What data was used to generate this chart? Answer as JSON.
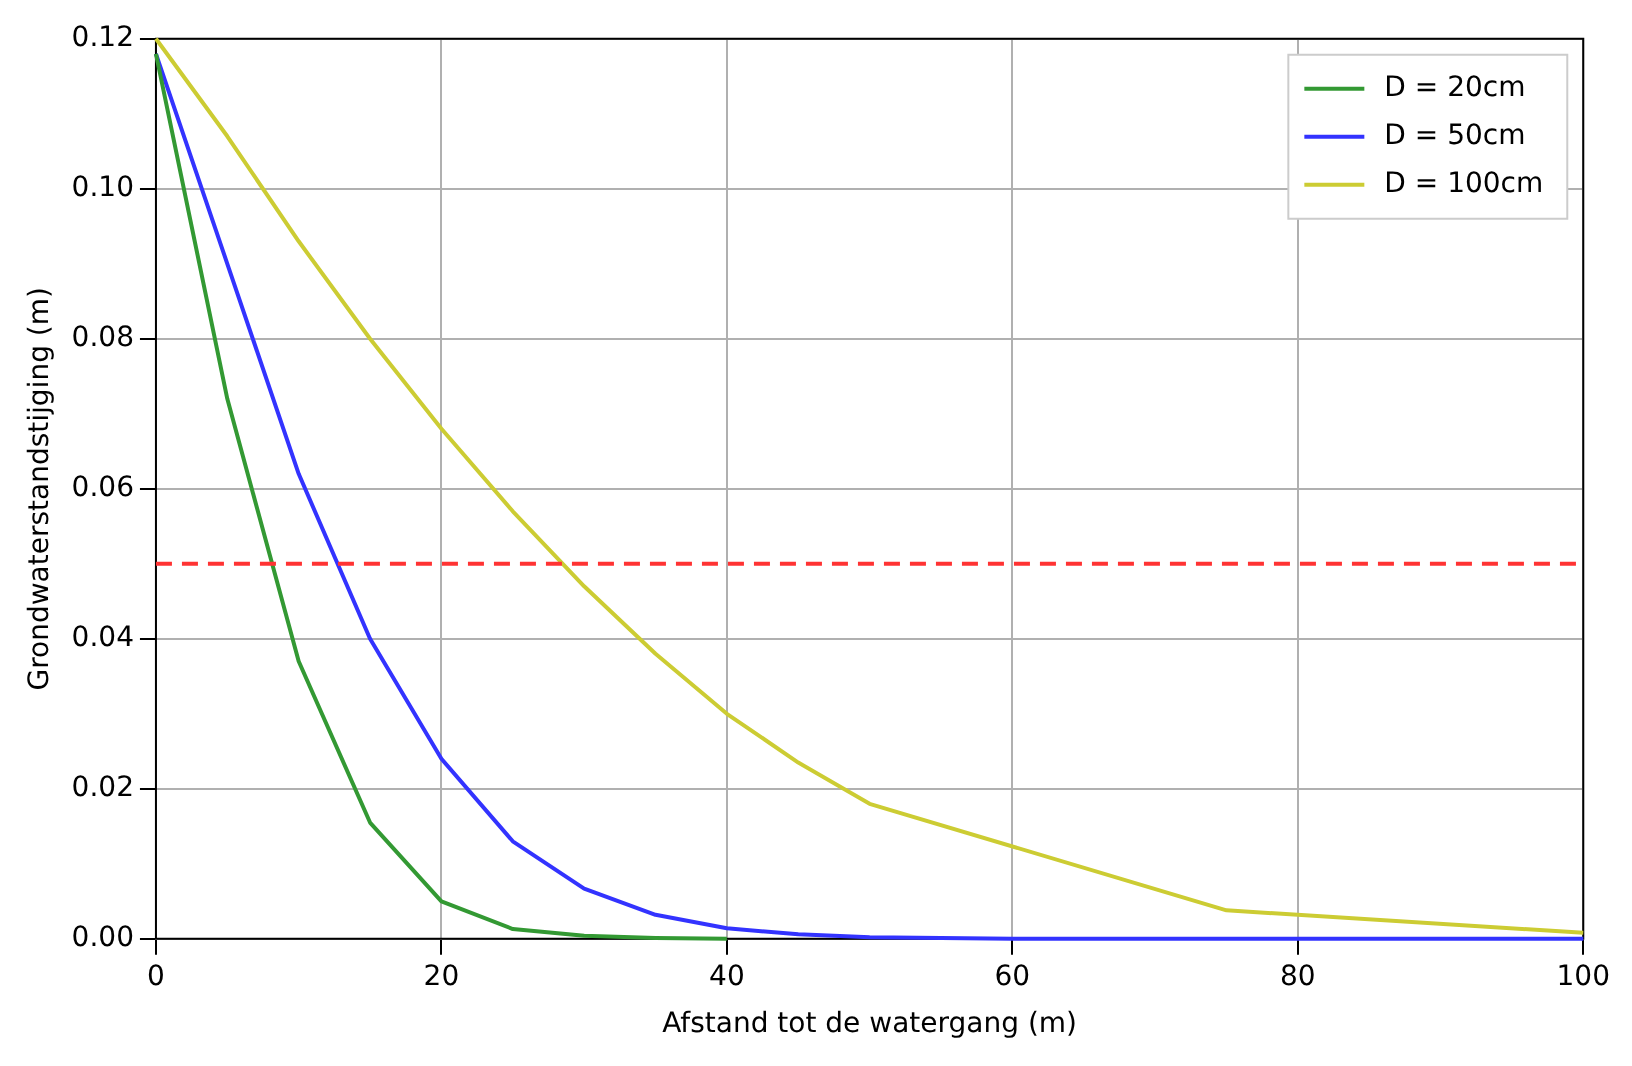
{
  "chart_data": {
    "type": "line",
    "xlabel": "Afstand tot de watergang (m)",
    "ylabel": "Grondwaterstandstijging (m)",
    "xlim": [
      0,
      100
    ],
    "xticks": [
      0,
      20,
      40,
      60,
      80,
      100
    ],
    "ylim": [
      0,
      0.12
    ],
    "yticks": [
      {
        "value": 0,
        "label": "0.00"
      },
      {
        "value": 0.02,
        "label": "0.02"
      },
      {
        "value": 0.04,
        "label": "0.04"
      },
      {
        "value": 0.06,
        "label": "0.06"
      },
      {
        "value": 0.08,
        "label": "0.08"
      },
      {
        "value": 0.1,
        "label": "0.10"
      },
      {
        "value": 0.12,
        "label": "0.12"
      }
    ],
    "grid": true,
    "legend": "top right",
    "marker": "none",
    "line_style": "solid",
    "series": [
      {
        "name": "D = 20cm",
        "color": "#339933",
        "x": [
          0,
          5,
          10,
          15,
          20,
          25,
          30,
          35,
          40
        ],
        "values": [
          0.118,
          0.072,
          0.037,
          0.0155,
          0.005,
          0.0013,
          0.0004,
          0.0001,
          0
        ]
      },
      {
        "name": "D = 50cm",
        "color": "#3333ff",
        "x": [
          0,
          5,
          10,
          15,
          20,
          25,
          30,
          35,
          40,
          45,
          50,
          60,
          70,
          80,
          90,
          100
        ],
        "values": [
          0.118,
          0.09,
          0.062,
          0.04,
          0.024,
          0.013,
          0.0067,
          0.0032,
          0.0014,
          0.0006,
          0.0002,
          0,
          0,
          0,
          0,
          0
        ]
      },
      {
        "name": "D = 100cm",
        "color": "#cccc33",
        "x": [
          0,
          5,
          10,
          15,
          20,
          25,
          30,
          35,
          40,
          45,
          50,
          75,
          100
        ],
        "values": [
          0.12,
          0.107,
          0.093,
          0.08,
          0.068,
          0.057,
          0.047,
          0.038,
          0.03,
          0.0235,
          0.018,
          0.0038,
          0.0008
        ]
      }
    ],
    "ref_lines": [
      {
        "axis": "y",
        "value": 0.05,
        "color": "#ff3333",
        "line_style": "dashed"
      }
    ]
  }
}
